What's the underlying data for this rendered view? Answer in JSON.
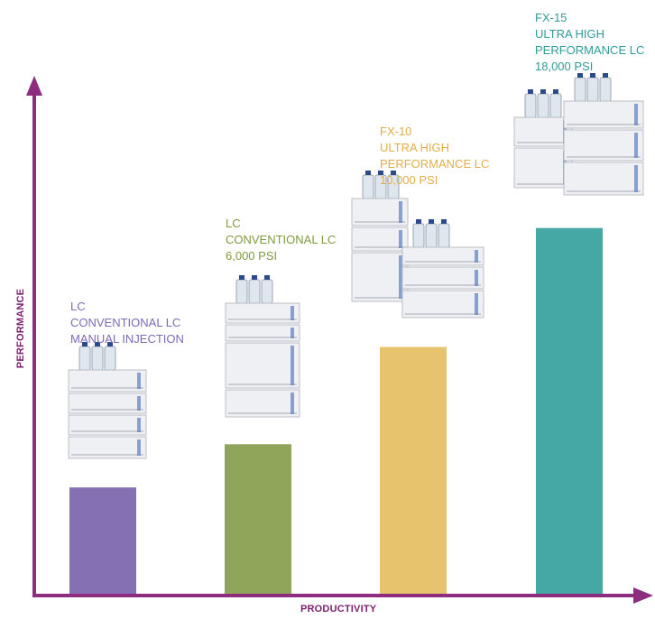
{
  "chart_data": {
    "type": "bar",
    "xlabel": "PRODUCTIVITY",
    "ylabel": "PERFORMANCE",
    "categories": [
      "LC CONVENTIONAL LC MANUAL INJECTION",
      "LC CONVENTIONAL LC 6,000 PSI",
      "FX-10 ULTRA HIGH PERFORMANCE LC 10,000 PSI",
      "FX-15 ULTRA HIGH PERFORMANCE LC 18,000 PSI"
    ],
    "values": [
      1.0,
      1.4,
      2.3,
      3.4
    ],
    "colors": [
      "#8470b3",
      "#8fa65a",
      "#e8c36e",
      "#46a8a4"
    ],
    "ylim": [
      0,
      4.8
    ],
    "grid": false,
    "labels": [
      {
        "lines": [
          "LC",
          "CONVENTIONAL LC",
          "MANUAL INJECTION"
        ],
        "color": "#7e6bb5"
      },
      {
        "lines": [
          "LC",
          "CONVENTIONAL LC",
          "6,000 PSI"
        ],
        "color": "#7f9a3f"
      },
      {
        "lines": [
          "FX-10",
          "ULTRA HIGH",
          "PERFORMANCE LC",
          "10,000 PSI"
        ],
        "color": "#e3ae4a"
      },
      {
        "lines": [
          "FX-15",
          "ULTRA HIGH",
          "PERFORMANCE LC",
          "18,000 PSI"
        ],
        "color": "#2f9c98"
      }
    ]
  },
  "axis_color": "#8e2c80",
  "instrument_icons": [
    "hplc-system-icon",
    "hplc-system-icon",
    "hplc-system-icon",
    "hplc-system-icon"
  ]
}
